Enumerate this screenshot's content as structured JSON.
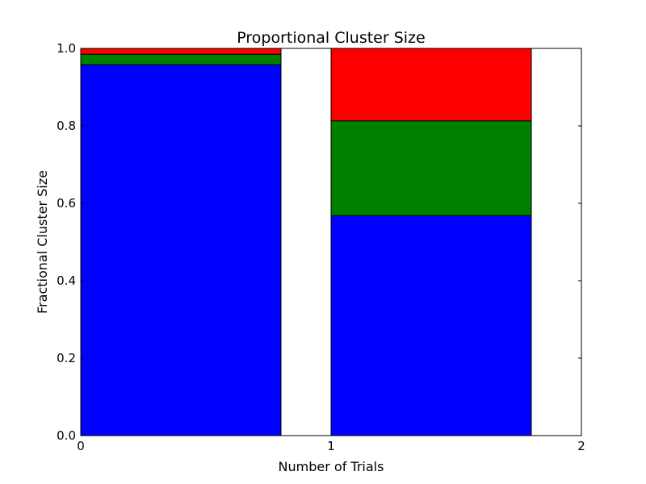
{
  "chart_data": {
    "type": "bar",
    "stacked": true,
    "title": "Proportional Cluster Size",
    "xlabel": "Number of Trials",
    "ylabel": "Fractional Cluster Size",
    "xlim": [
      0,
      2
    ],
    "ylim": [
      0,
      1
    ],
    "xticks": [
      0,
      1,
      2
    ],
    "yticks": [
      0.0,
      0.2,
      0.4,
      0.6,
      0.8,
      1.0
    ],
    "bar_width": 0.8,
    "x": [
      0,
      1
    ],
    "series": [
      {
        "color": "#0000ff",
        "values": [
          0.958,
          0.568
        ]
      },
      {
        "color": "#008000",
        "values": [
          0.027,
          0.245
        ]
      },
      {
        "color": "#ff0000",
        "values": [
          0.015,
          0.187
        ]
      }
    ],
    "grid": false,
    "legend": null
  }
}
